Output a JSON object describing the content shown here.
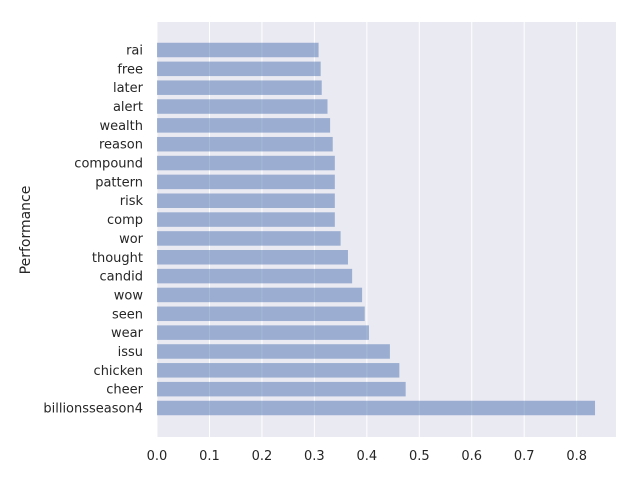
{
  "chart_data": {
    "type": "bar",
    "orientation": "horizontal",
    "categories": [
      "billionsseason4",
      "cheer",
      "chicken",
      "issu",
      "wear",
      "seen",
      "wow",
      "candid",
      "thought",
      "wor",
      "comp",
      "risk",
      "pattern",
      "compound",
      "reason",
      "wealth",
      "alert",
      "later",
      "free",
      "rai"
    ],
    "values": [
      0.835,
      0.474,
      0.462,
      0.444,
      0.404,
      0.396,
      0.391,
      0.372,
      0.364,
      0.35,
      0.339,
      0.339,
      0.339,
      0.339,
      0.335,
      0.33,
      0.325,
      0.314,
      0.312,
      0.308
    ],
    "title": "",
    "xlabel": "",
    "ylabel": "Performance",
    "xlim": [
      0,
      0.875
    ],
    "xticks": [
      "0.0",
      "0.1",
      "0.2",
      "0.3",
      "0.4",
      "0.5",
      "0.6",
      "0.7",
      "0.8"
    ],
    "grid": true,
    "bar_color": "#4c72b0",
    "background_color": "#eaeaf2"
  }
}
